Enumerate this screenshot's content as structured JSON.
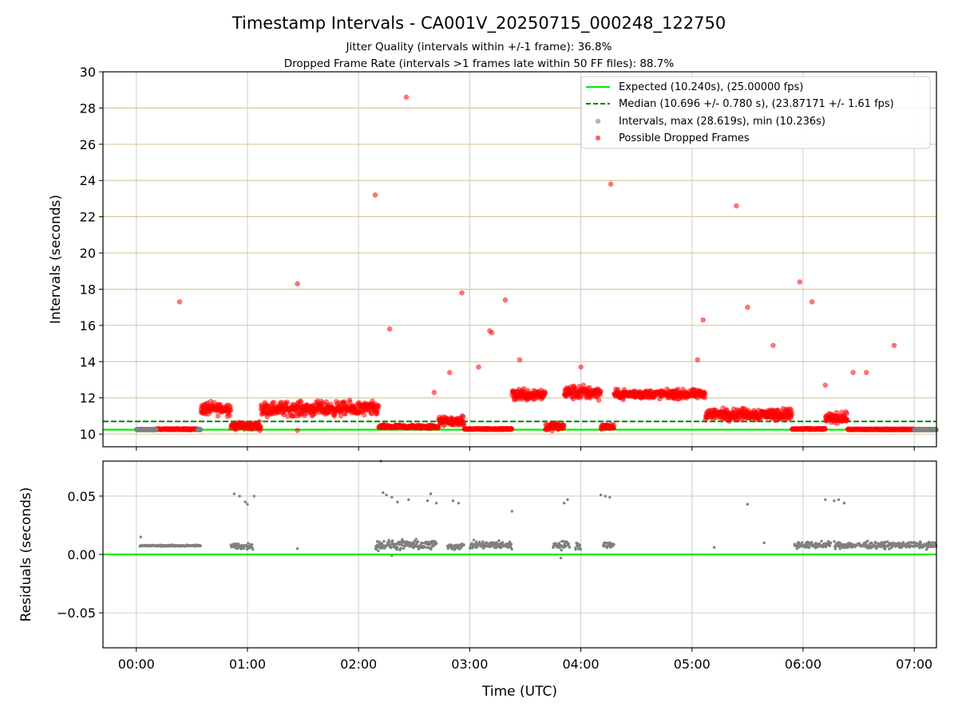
{
  "chart_data": {
    "type": "scatter",
    "title": "Timestamp Intervals - CA001V_20250715_000248_122750",
    "subtitle_1": "Jitter Quality (intervals within +/-1 frame): 36.8%",
    "subtitle_2": "Dropped Frame Rate (intervals >1 frames late within 50 FF files): 88.7%",
    "xlabel": "Time (UTC)",
    "x_ticks": [
      "00:00",
      "01:00",
      "02:00",
      "03:00",
      "04:00",
      "05:00",
      "06:00",
      "07:00"
    ],
    "xlim_hours": [
      -0.3,
      7.2
    ],
    "legend": [
      "Expected (10.240s), (25.00000 fps)",
      "Median (10.696 +/- 0.780 s), (23.87171 +/- 1.61 fps)",
      "Intervals, max (28.619s), min (10.236s)",
      "Possible Dropped Frames"
    ],
    "colors": {
      "expected": "#00ee00",
      "median": "#008000",
      "intervals": "#808080",
      "dropped": "#ff0000",
      "top_grid": "#d4c08a",
      "grid": "#cccccc"
    },
    "panels": [
      {
        "name": "intervals",
        "ylabel": "Intervals (seconds)",
        "ylim": [
          9.3,
          30
        ],
        "y_ticks": [
          10,
          12,
          14,
          16,
          18,
          20,
          22,
          24,
          26,
          28,
          30
        ],
        "y_tick_labels": [
          "10",
          "12",
          "14",
          "16",
          "18",
          "20",
          "22",
          "24",
          "26",
          "28",
          "30"
        ],
        "expected": 10.24,
        "median": 10.696,
        "grid": true,
        "series": [
          {
            "name": "Possible Dropped Frames",
            "segments": [
              {
                "x_start": 0.18,
                "x_end": 0.55,
                "y_center": 10.27,
                "spread": 0.04
              },
              {
                "x_start": 0.58,
                "x_end": 0.85,
                "y_center": 11.4,
                "spread": 0.5
              },
              {
                "x_start": 0.85,
                "x_end": 1.12,
                "y_center": 10.45,
                "spread": 0.3
              },
              {
                "x_start": 1.12,
                "x_end": 2.18,
                "y_center": 11.4,
                "spread": 0.55
              },
              {
                "x_start": 2.18,
                "x_end": 2.72,
                "y_center": 10.4,
                "spread": 0.15
              },
              {
                "x_start": 2.72,
                "x_end": 2.95,
                "y_center": 10.7,
                "spread": 0.35
              },
              {
                "x_start": 2.95,
                "x_end": 3.38,
                "y_center": 10.28,
                "spread": 0.04
              },
              {
                "x_start": 3.38,
                "x_end": 3.68,
                "y_center": 12.2,
                "spread": 0.5
              },
              {
                "x_start": 3.68,
                "x_end": 3.85,
                "y_center": 10.4,
                "spread": 0.3
              },
              {
                "x_start": 3.85,
                "x_end": 4.18,
                "y_center": 12.3,
                "spread": 0.55
              },
              {
                "x_start": 4.18,
                "x_end": 4.3,
                "y_center": 10.4,
                "spread": 0.2
              },
              {
                "x_start": 4.3,
                "x_end": 5.12,
                "y_center": 12.2,
                "spread": 0.35
              },
              {
                "x_start": 5.12,
                "x_end": 5.9,
                "y_center": 11.1,
                "spread": 0.45
              },
              {
                "x_start": 5.9,
                "x_end": 6.2,
                "y_center": 10.28,
                "spread": 0.04
              },
              {
                "x_start": 6.2,
                "x_end": 6.4,
                "y_center": 10.9,
                "spread": 0.4
              },
              {
                "x_start": 6.4,
                "x_end": 7.0,
                "y_center": 10.26,
                "spread": 0.03
              }
            ],
            "outliers": [
              [
                0.39,
                17.3
              ],
              [
                1.45,
                18.3
              ],
              [
                2.15,
                23.2
              ],
              [
                2.28,
                15.8
              ],
              [
                2.43,
                28.6
              ],
              [
                2.93,
                17.8
              ],
              [
                3.08,
                13.7
              ],
              [
                3.18,
                15.7
              ],
              [
                3.2,
                15.6
              ],
              [
                3.32,
                17.4
              ],
              [
                3.45,
                14.1
              ],
              [
                4.0,
                13.7
              ],
              [
                4.27,
                23.8
              ],
              [
                5.05,
                14.1
              ],
              [
                5.1,
                16.3
              ],
              [
                5.4,
                22.6
              ],
              [
                5.5,
                17.0
              ],
              [
                5.73,
                14.9
              ],
              [
                5.97,
                18.4
              ],
              [
                6.08,
                17.3
              ],
              [
                6.2,
                12.7
              ],
              [
                6.45,
                13.4
              ],
              [
                6.57,
                13.4
              ],
              [
                6.82,
                14.9
              ],
              [
                2.82,
                13.4
              ],
              [
                2.68,
                12.3
              ],
              [
                1.45,
                10.2
              ],
              [
                1.12,
                10.3
              ]
            ]
          },
          {
            "name": "Intervals",
            "segments": [
              {
                "x_start": 0.0,
                "x_end": 0.18,
                "y_center": 10.25,
                "spread": 0.02
              },
              {
                "x_start": 0.55,
                "x_end": 0.58,
                "y_center": 10.25,
                "spread": 0.02
              },
              {
                "x_start": 7.0,
                "x_end": 7.2,
                "y_center": 10.25,
                "spread": 0.02
              }
            ],
            "outliers": []
          }
        ]
      },
      {
        "name": "residuals",
        "ylabel": "Residuals (seconds)",
        "ylim": [
          -0.08,
          0.08
        ],
        "y_ticks": [
          -0.05,
          0.0,
          0.05
        ],
        "y_tick_labels": [
          "−0.05",
          "0.00",
          "0.05"
        ],
        "zero_line": 0.0,
        "grid": true,
        "series": [
          {
            "name": "Residuals",
            "segments": [
              {
                "x_start": 0.03,
                "x_end": 0.58,
                "y_center": 0.0075,
                "spread": 0.001
              },
              {
                "x_start": 0.85,
                "x_end": 1.05,
                "y_center": 0.007,
                "spread": 0.004
              },
              {
                "x_start": 2.15,
                "x_end": 2.7,
                "y_center": 0.008,
                "spread": 0.006
              },
              {
                "x_start": 2.8,
                "x_end": 2.95,
                "y_center": 0.007,
                "spread": 0.004
              },
              {
                "x_start": 3.0,
                "x_end": 3.38,
                "y_center": 0.008,
                "spread": 0.005
              },
              {
                "x_start": 3.75,
                "x_end": 3.9,
                "y_center": 0.008,
                "spread": 0.005
              },
              {
                "x_start": 3.95,
                "x_end": 4.0,
                "y_center": 0.008,
                "spread": 0.005
              },
              {
                "x_start": 4.2,
                "x_end": 4.3,
                "y_center": 0.008,
                "spread": 0.004
              },
              {
                "x_start": 5.92,
                "x_end": 6.25,
                "y_center": 0.008,
                "spread": 0.004
              },
              {
                "x_start": 6.28,
                "x_end": 7.2,
                "y_center": 0.008,
                "spread": 0.004
              }
            ],
            "outliers": [
              [
                0.04,
                0.015
              ],
              [
                0.88,
                0.052
              ],
              [
                0.93,
                0.05
              ],
              [
                0.98,
                0.045
              ],
              [
                1.0,
                0.043
              ],
              [
                1.06,
                0.05
              ],
              [
                1.45,
                0.005
              ],
              [
                2.2,
                0.08
              ],
              [
                2.22,
                0.053
              ],
              [
                2.25,
                0.051
              ],
              [
                2.3,
                0.049
              ],
              [
                2.35,
                0.045
              ],
              [
                2.45,
                0.047
              ],
              [
                2.62,
                0.046
              ],
              [
                2.65,
                0.052
              ],
              [
                2.7,
                0.044
              ],
              [
                2.85,
                0.046
              ],
              [
                2.9,
                0.044
              ],
              [
                3.38,
                0.037
              ],
              [
                3.85,
                0.044
              ],
              [
                3.88,
                0.047
              ],
              [
                4.18,
                0.051
              ],
              [
                4.22,
                0.05
              ],
              [
                4.26,
                0.049
              ],
              [
                5.2,
                0.006
              ],
              [
                5.5,
                0.043
              ],
              [
                5.65,
                0.01
              ],
              [
                6.2,
                0.047
              ],
              [
                6.28,
                0.046
              ],
              [
                6.32,
                0.047
              ],
              [
                6.37,
                0.044
              ],
              [
                3.82,
                -0.003
              ],
              [
                2.3,
                -0.001
              ]
            ]
          }
        ]
      }
    ]
  }
}
